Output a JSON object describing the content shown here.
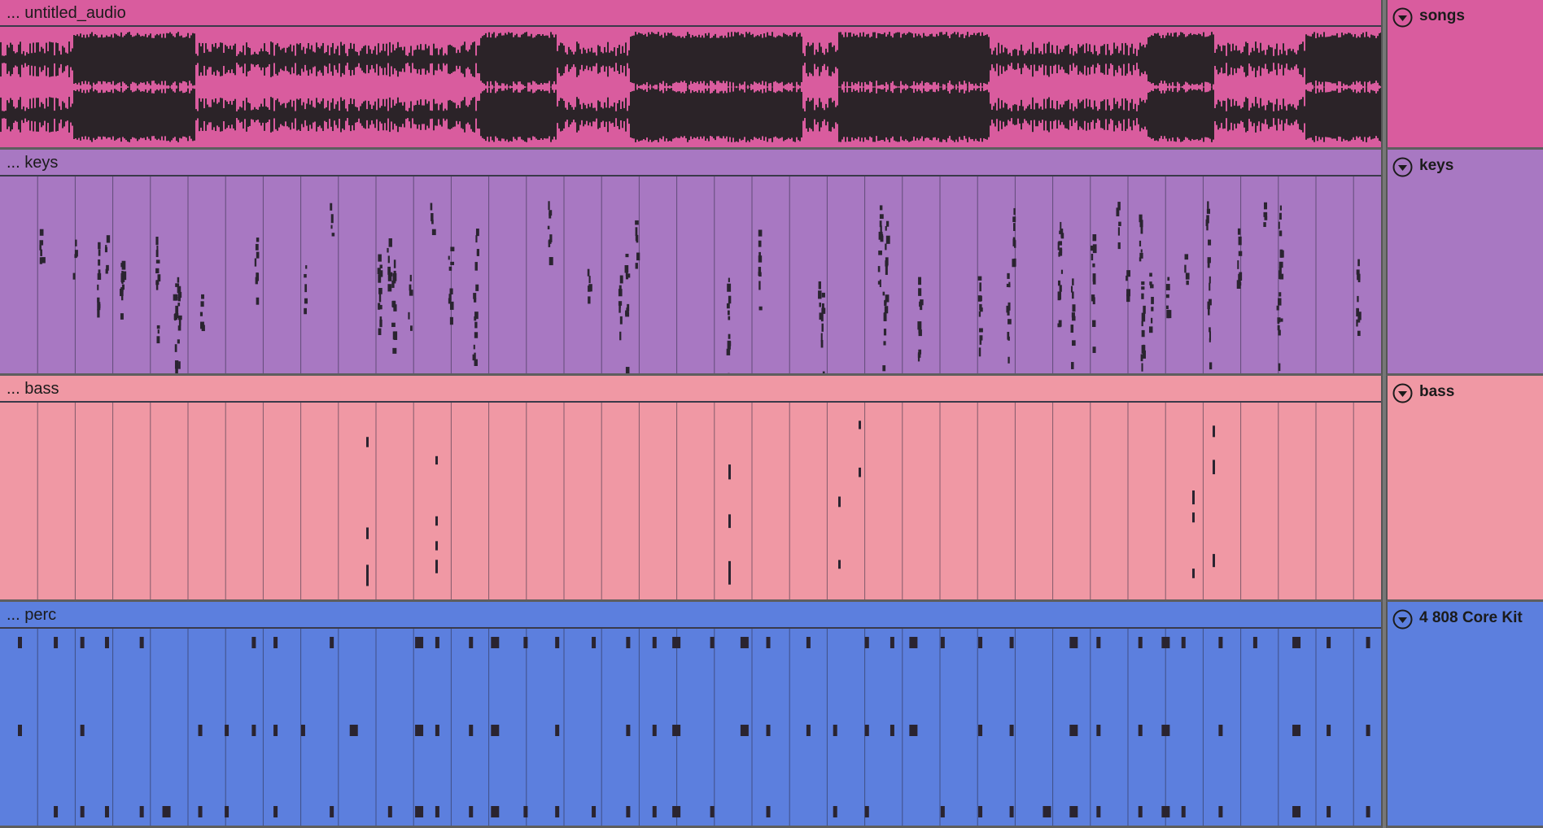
{
  "tracks": [
    {
      "id": "audio",
      "clip_name": "... untitled_audio",
      "device": "songs",
      "color": "#d95c9e",
      "content": "waveform"
    },
    {
      "id": "keys",
      "clip_name": "... keys",
      "device": "keys",
      "color": "#a878c2",
      "content": "midi-notes"
    },
    {
      "id": "bass",
      "clip_name": "... bass",
      "device": "bass",
      "color": "#f098a4",
      "content": "midi-notes"
    },
    {
      "id": "perc",
      "clip_name": "... perc",
      "device": "4 808 Core Kit",
      "color": "#5c7fde",
      "content": "midi-notes"
    }
  ],
  "icons": {
    "fold": "fold-toggle-icon"
  }
}
